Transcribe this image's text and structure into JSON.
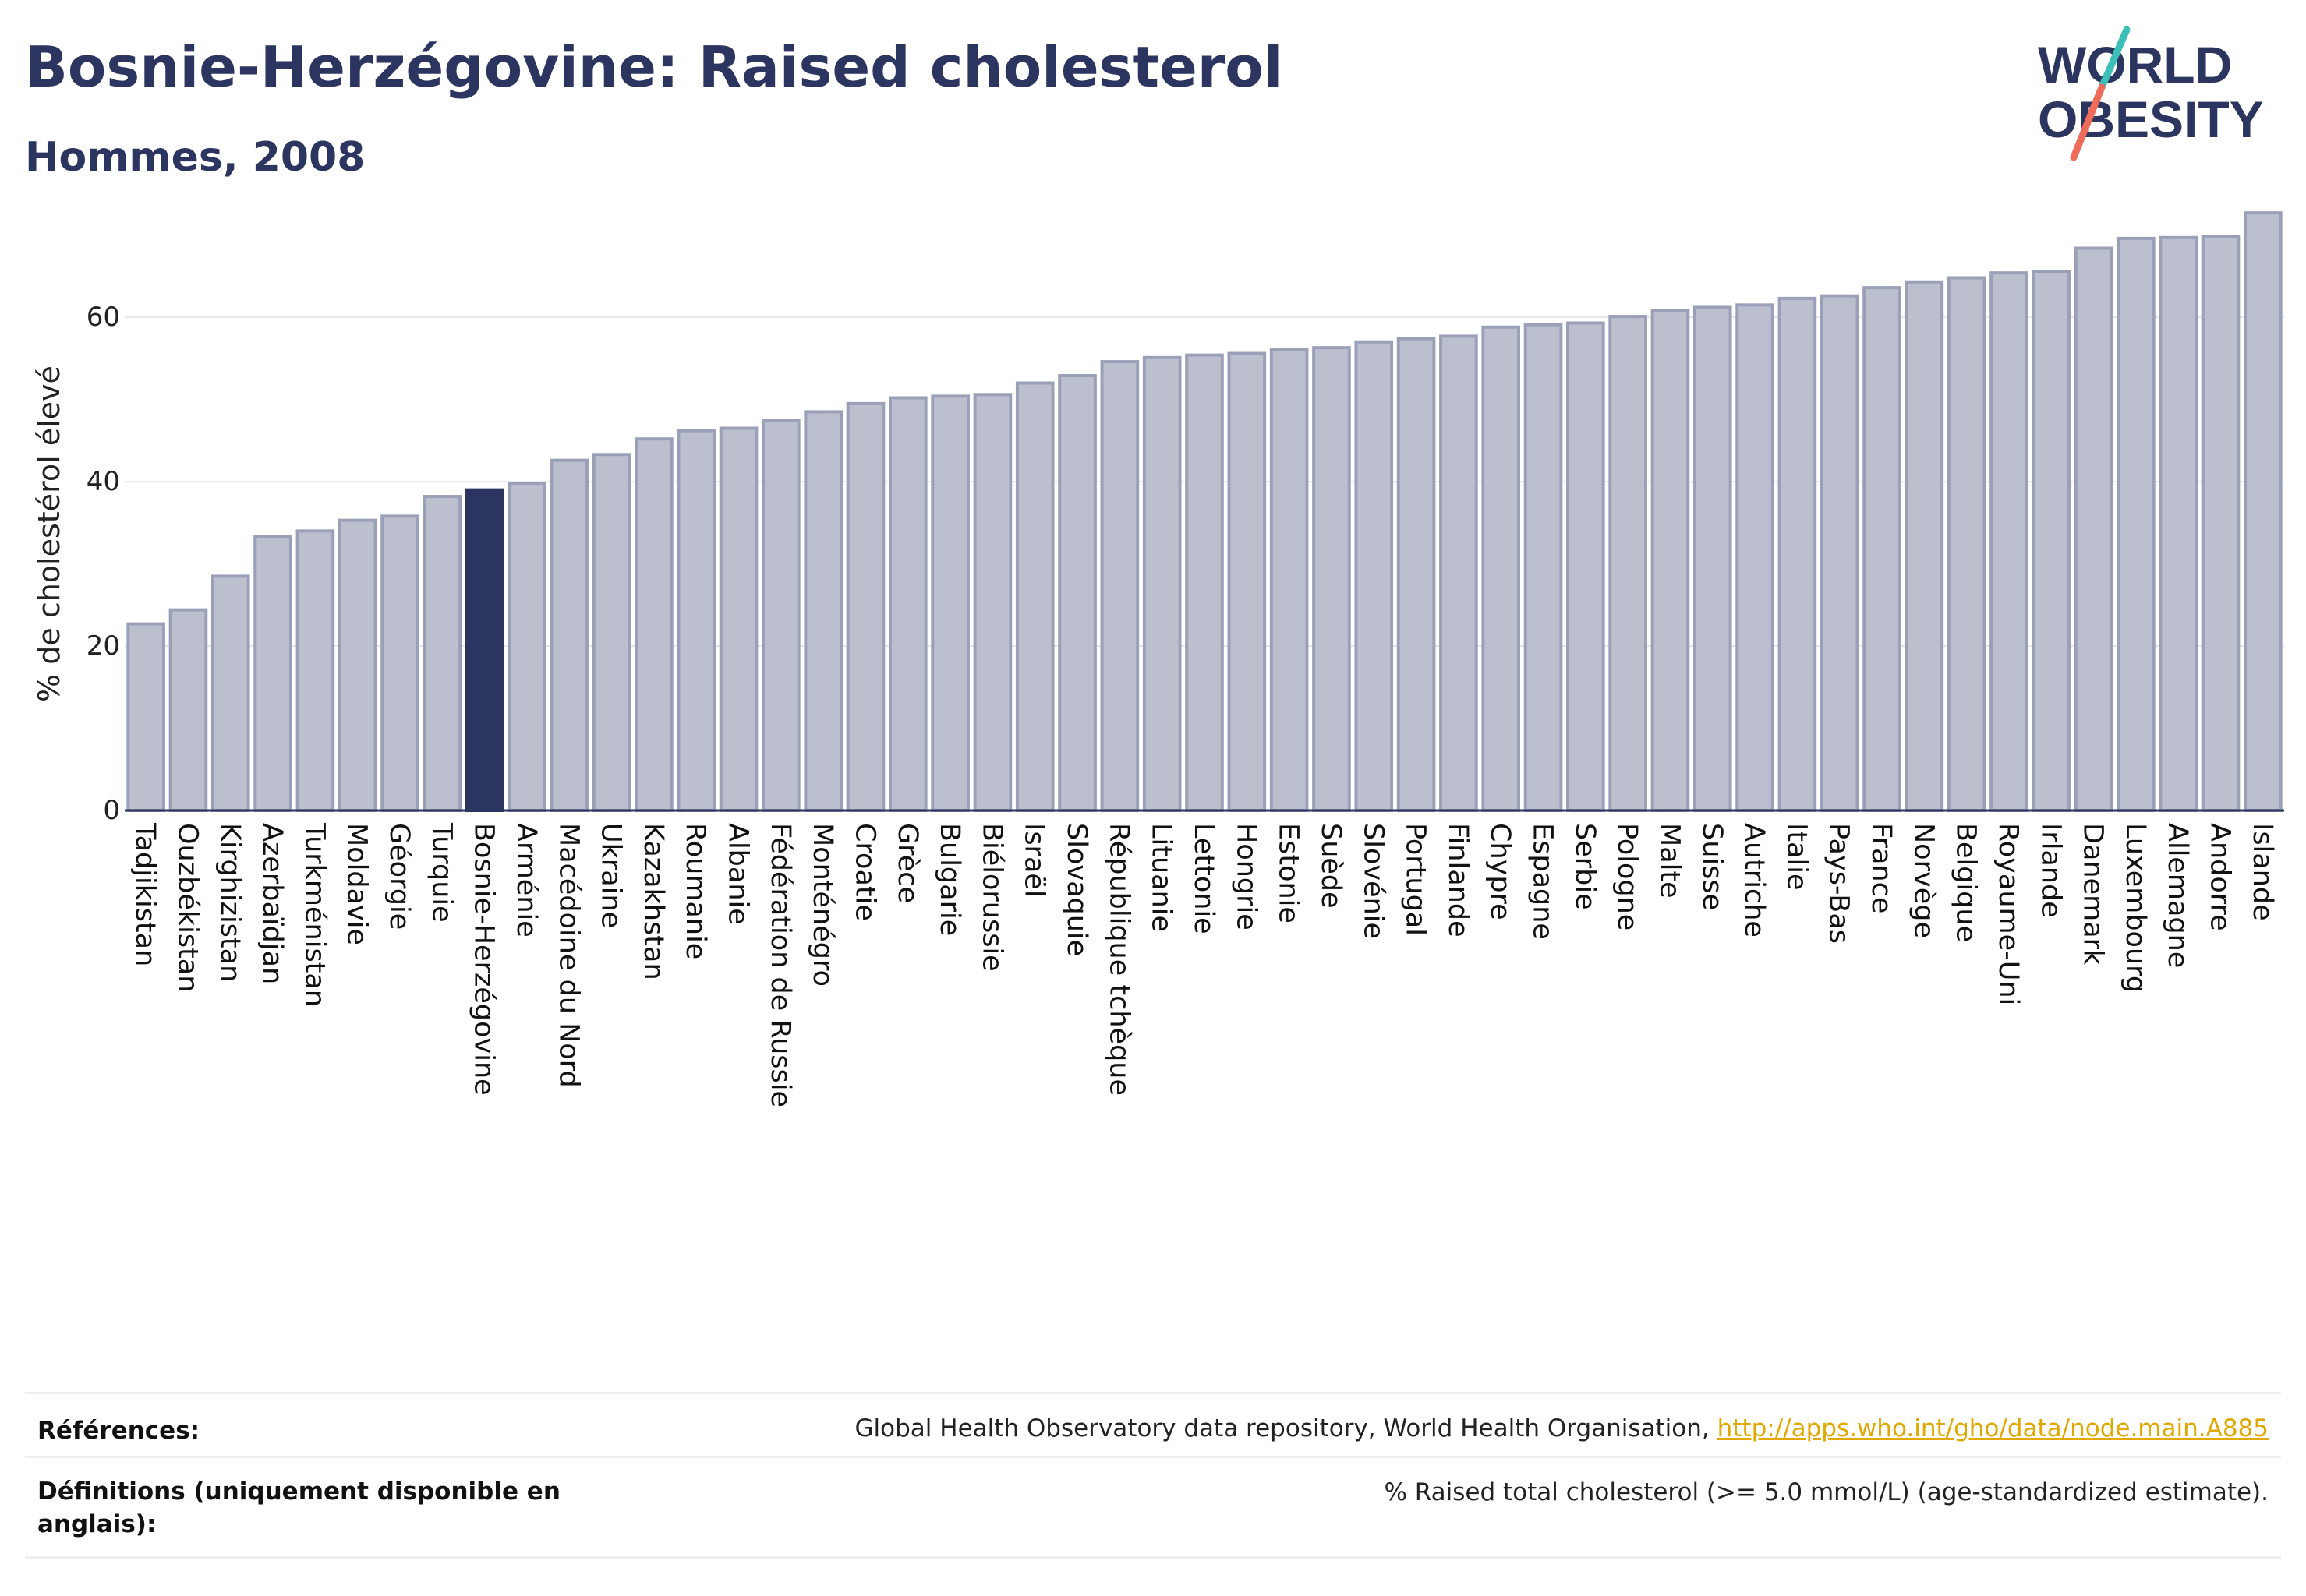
{
  "header": {
    "title": "Bosnie-Herzégovine: Raised cholesterol",
    "subtitle": "Hommes, 2008",
    "logo_line1": "WORLD",
    "logo_line2": "OBESITY"
  },
  "colors": {
    "bar": "#bcc0ce",
    "bar_stroke": "#9aa0b8",
    "highlight": "#2b3560",
    "text": "#2b3560",
    "logo_teal": "#3bbfb7",
    "logo_coral": "#ef6b5a",
    "link": "#e0a800"
  },
  "chart_data": {
    "type": "bar",
    "ylabel": "% de cholestérol élevé",
    "ylim": [
      0,
      73
    ],
    "yticks": [
      0,
      20,
      40,
      60
    ],
    "highlight": "Bosnie-Herzégovine",
    "grid": true,
    "categories": [
      "Tadjikistan",
      "Ouzbékistan",
      "Kirghizistan",
      "Azerbaïdjan",
      "Turkménistan",
      "Moldavie",
      "Géorgie",
      "Turquie",
      "Bosnie-Herzégovine",
      "Arménie",
      "Macédoine du Nord",
      "Ukraine",
      "Kazakhstan",
      "Roumanie",
      "Albanie",
      "Fédération de Russie",
      "Monténégro",
      "Croatie",
      "Grèce",
      "Bulgarie",
      "Biélorussie",
      "Israël",
      "Slovaquie",
      "République tchèque",
      "Lituanie",
      "Lettonie",
      "Hongrie",
      "Estonie",
      "Suède",
      "Slovénie",
      "Portugal",
      "Finlande",
      "Chypre",
      "Espagne",
      "Serbie",
      "Pologne",
      "Malte",
      "Suisse",
      "Autriche",
      "Italie",
      "Pays-Bas",
      "France",
      "Norvège",
      "Belgique",
      "Royaume-Uni",
      "Irlande",
      "Danemark",
      "Luxembourg",
      "Allemagne",
      "Andorre",
      "Islande"
    ],
    "values": [
      22.7,
      24.4,
      28.5,
      33.3,
      34.0,
      35.3,
      35.8,
      38.2,
      39.0,
      39.8,
      42.6,
      43.3,
      45.2,
      46.2,
      46.5,
      47.4,
      48.5,
      49.5,
      50.2,
      50.4,
      50.6,
      52.0,
      52.9,
      54.6,
      55.1,
      55.4,
      55.6,
      56.1,
      56.3,
      57.0,
      57.4,
      57.7,
      58.8,
      59.1,
      59.3,
      60.1,
      60.8,
      61.2,
      61.5,
      62.3,
      62.6,
      63.6,
      64.3,
      64.8,
      65.4,
      65.6,
      68.4,
      69.6,
      69.7,
      69.8,
      72.7
    ]
  },
  "footer": {
    "references_label": "Références:",
    "references_text": "Global Health Observatory data repository, World Health Organisation, ",
    "references_link": "http://apps.who.int/gho/data/node.main.A885",
    "definitions_label": "Définitions (uniquement disponible en anglais):",
    "definitions_text": "% Raised total cholesterol (>= 5.0 mmol/L) (age-standardized estimate)."
  }
}
